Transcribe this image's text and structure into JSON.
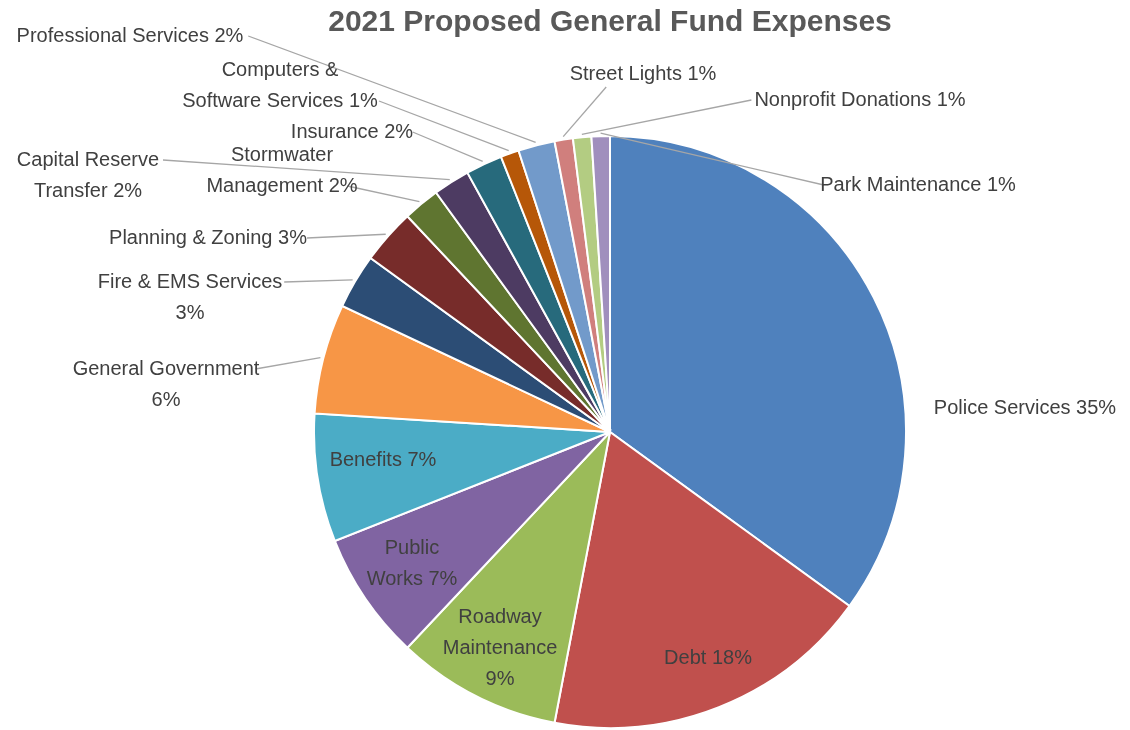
{
  "chart_data": {
    "type": "pie",
    "title": "2021 Proposed General Fund Expenses",
    "categories": [
      "Police Services",
      "Debt",
      "Roadway Maintenance",
      "Public Works",
      "Benefits",
      "General Government",
      "Fire & EMS Services",
      "Planning & Zoning",
      "Stormwater Management",
      "Capital Reserve Transfer",
      "Insurance",
      "Computers & Software Services",
      "Professional Services",
      "Street Lights",
      "Nonprofit Donations",
      "Park Maintenance"
    ],
    "values": [
      35,
      18,
      9,
      7,
      7,
      6,
      3,
      3,
      2,
      2,
      2,
      1,
      2,
      1,
      1,
      1
    ],
    "value_labels": [
      "35%",
      "18%",
      "9%",
      "7%",
      "7%",
      "6%",
      "3%",
      "3%",
      "2%",
      "2%",
      "2%",
      "1%",
      "2%",
      "1%",
      "1%",
      "1%"
    ],
    "colors": [
      "#4f81bd",
      "#c0504d",
      "#9bbb59",
      "#8064a2",
      "#4bacc6",
      "#f79646",
      "#2c4d75",
      "#772c2a",
      "#5f7530",
      "#4d3b62",
      "#276a7c",
      "#b65708",
      "#729aca",
      "#d07f7d",
      "#b3cc82",
      "#a08fbd"
    ]
  }
}
